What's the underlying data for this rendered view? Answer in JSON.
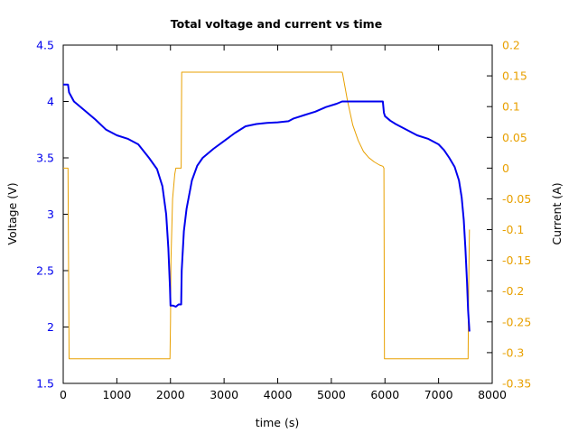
{
  "chart_data": {
    "type": "line",
    "title": "Total voltage and current vs time",
    "xlabel": "time (s)",
    "ylabel_left": "Voltage (V)",
    "ylabel_right": "Current (A)",
    "xlim": [
      0,
      8000
    ],
    "ylim_left": [
      1.5,
      4.5
    ],
    "ylim_right": [
      -0.35,
      0.2
    ],
    "x_ticks": [
      "0",
      "1000",
      "2000",
      "3000",
      "4000",
      "5000",
      "6000",
      "7000",
      "8000"
    ],
    "y_ticks_left": [
      "1.5",
      "2",
      "2.5",
      "3",
      "3.5",
      "4",
      "4.5"
    ],
    "y_ticks_right": [
      "-0.35",
      "-0.3",
      "-0.25",
      "-0.2",
      "-0.15",
      "-0.1",
      "-0.05",
      "0",
      "0.05",
      "0.1",
      "0.15",
      "0.2"
    ],
    "grid": false,
    "colors": {
      "voltage": "#0000ee",
      "current": "#e8a000",
      "left_axis": "#0000ee",
      "right_axis": "#e8a000"
    },
    "series": [
      {
        "axis": "left",
        "x": [
          0,
          90,
          110,
          200,
          400,
          600,
          800,
          1000,
          1200,
          1400,
          1600,
          1750,
          1850,
          1920,
          1960,
          1990,
          2000,
          2050,
          2100,
          2150,
          2200,
          2210,
          2250,
          2300,
          2400,
          2500,
          2600,
          2800,
          3000,
          3200,
          3400,
          3600,
          3800,
          4000,
          4200,
          4300,
          4500,
          4700,
          4900,
          5100,
          5200,
          5400,
          5600,
          5800,
          5960,
          5980,
          6000,
          6100,
          6200,
          6400,
          6600,
          6800,
          7000,
          7100,
          7200,
          7300,
          7380,
          7430,
          7470,
          7500,
          7530,
          7550,
          7575
        ],
        "y": [
          4.15,
          4.15,
          4.08,
          4.0,
          3.92,
          3.84,
          3.75,
          3.7,
          3.67,
          3.62,
          3.5,
          3.4,
          3.25,
          3.0,
          2.7,
          2.35,
          2.19,
          2.19,
          2.18,
          2.2,
          2.2,
          2.5,
          2.85,
          3.05,
          3.3,
          3.43,
          3.5,
          3.58,
          3.65,
          3.72,
          3.78,
          3.8,
          3.81,
          3.815,
          3.825,
          3.85,
          3.88,
          3.91,
          3.95,
          3.98,
          4.0,
          4.0,
          4.0,
          4.0,
          4.0,
          3.9,
          3.87,
          3.83,
          3.8,
          3.75,
          3.7,
          3.67,
          3.62,
          3.57,
          3.5,
          3.42,
          3.3,
          3.15,
          2.95,
          2.7,
          2.4,
          2.15,
          1.96
        ]
      },
      {
        "axis": "right",
        "x": [
          0,
          90,
          110,
          200,
          1000,
          1990,
          2000,
          2010,
          2040,
          2070,
          2080,
          2100,
          2190,
          2200,
          2210,
          2700,
          3200,
          4200,
          5200,
          5210,
          5300,
          5400,
          5500,
          5600,
          5700,
          5800,
          5900,
          5960,
          5980,
          5990,
          6000,
          6500,
          7000,
          7550,
          7560,
          7575
        ],
        "y": [
          0.0,
          0.0,
          -0.31,
          -0.31,
          -0.31,
          -0.31,
          -0.25,
          -0.15,
          -0.05,
          -0.02,
          -0.01,
          0.0,
          0.0,
          0.0,
          0.156,
          0.156,
          0.156,
          0.156,
          0.156,
          0.154,
          0.11,
          0.07,
          0.045,
          0.027,
          0.017,
          0.01,
          0.005,
          0.003,
          0.0,
          -0.31,
          -0.31,
          -0.31,
          -0.31,
          -0.31,
          -0.2,
          -0.1
        ]
      }
    ]
  }
}
